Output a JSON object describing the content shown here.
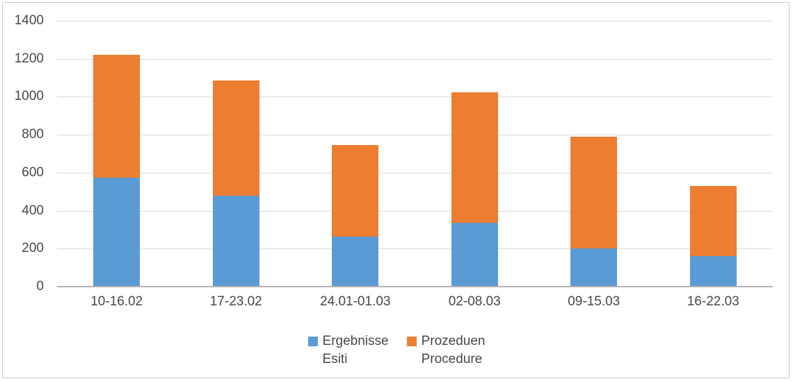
{
  "chart_data": {
    "type": "bar",
    "stacked": true,
    "title": "",
    "xlabel": "",
    "ylabel": "",
    "categories": [
      "10-16.02",
      "17-23.02",
      "24.01-01.03",
      "02-08.03",
      "09-15.03",
      "16-22.03"
    ],
    "series": [
      {
        "name": "Ergebnisse Esiti",
        "label_lines": [
          "Ergebnisse",
          "Esiti"
        ],
        "color": "#5B9BD5",
        "values": [
          575,
          480,
          265,
          335,
          200,
          160
        ]
      },
      {
        "name": "Prozeduen Procedure",
        "label_lines": [
          "Prozeduen",
          "Procedure"
        ],
        "color": "#ED7D31",
        "values": [
          645,
          605,
          480,
          690,
          590,
          370
        ]
      }
    ],
    "totals": [
      1220,
      1085,
      745,
      1025,
      790,
      530
    ],
    "y_axis": {
      "min": 0,
      "max": 1400,
      "step": 200,
      "ticks": [
        "1400",
        "1200",
        "1000",
        "800",
        "600",
        "400",
        "200",
        "0"
      ]
    },
    "grid": true,
    "legend_position": "bottom"
  },
  "style": {
    "gridline_color": "#d9d9d9",
    "axis_line_color": "#b3b3b3",
    "text_color": "#474747",
    "frame_color": "#c9c9c9",
    "background": "#ffffff"
  }
}
